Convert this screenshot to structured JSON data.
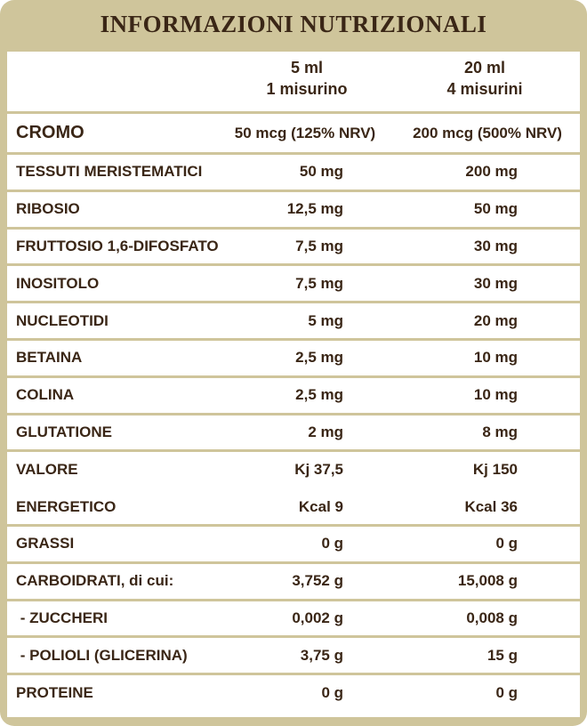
{
  "header": {
    "title": "INFORMAZIONI NUTRIZIONALI"
  },
  "table": {
    "columns": [
      {
        "lines": [
          "5 ml",
          "1 misurino"
        ]
      },
      {
        "lines": [
          "20 ml",
          "4 misurini"
        ]
      }
    ],
    "rows": [
      [
        "CROMO",
        "50 mcg (125% NRV)",
        "200 mcg (500% NRV)"
      ],
      [
        "TESSUTI MERISTEMATICI",
        "50 mg",
        "200 mg"
      ],
      [
        "RIBOSIO",
        "12,5 mg",
        "50 mg"
      ],
      [
        "FRUTTOSIO 1,6-DIFOSFATO",
        "7,5 mg",
        "30 mg"
      ],
      [
        "INOSITOLO",
        "7,5 mg",
        "30 mg"
      ],
      [
        "NUCLEOTIDI",
        "5 mg",
        "20 mg"
      ],
      [
        "BETAINA",
        "2,5 mg",
        "10 mg"
      ],
      [
        "COLINA",
        "2,5 mg",
        "10 mg"
      ],
      [
        "GLUTATIONE",
        "2 mg",
        "8 mg"
      ],
      [
        "VALORE",
        "Kj 37,5",
        "Kj 150"
      ],
      [
        "ENERGETICO",
        "Kcal 9",
        "Kcal 36"
      ],
      [
        "GRASSI",
        "0 g",
        "0 g"
      ],
      [
        "CARBOIDRATI, di cui:",
        "3,752 g",
        "15,008 g"
      ],
      [
        " - ZUCCHERI",
        "0,002 g",
        "0,008 g"
      ],
      [
        " - POLIOLI (GLICERINA)",
        "3,75 g",
        "15 g"
      ],
      [
        "PROTEINE",
        "0 g",
        "0 g"
      ]
    ]
  }
}
